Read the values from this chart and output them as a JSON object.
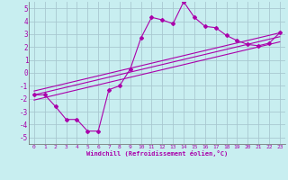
{
  "xlabel": "Windchill (Refroidissement éolien,°C)",
  "bg_color": "#c8eef0",
  "grid_color": "#a8c8d0",
  "line_color": "#aa00aa",
  "xlim": [
    -0.5,
    23.5
  ],
  "ylim": [
    -5.5,
    5.5
  ],
  "xticks": [
    0,
    1,
    2,
    3,
    4,
    5,
    6,
    7,
    8,
    9,
    10,
    11,
    12,
    13,
    14,
    15,
    16,
    17,
    18,
    19,
    20,
    21,
    22,
    23
  ],
  "yticks": [
    -5,
    -4,
    -3,
    -2,
    -1,
    0,
    1,
    2,
    3,
    4,
    5
  ],
  "scatter_x": [
    0,
    1,
    2,
    3,
    4,
    5,
    6,
    7,
    8,
    9,
    10,
    11,
    12,
    13,
    14,
    15,
    16,
    17,
    18,
    19,
    20,
    21,
    22,
    23
  ],
  "scatter_y": [
    -1.7,
    -1.7,
    -2.6,
    -3.6,
    -3.6,
    -4.5,
    -4.5,
    -1.3,
    -1.0,
    0.3,
    2.7,
    4.3,
    4.1,
    3.8,
    5.5,
    4.3,
    3.6,
    3.5,
    2.9,
    2.5,
    2.2,
    2.1,
    2.3,
    3.1
  ],
  "line1_x": [
    0,
    23
  ],
  "line1_y": [
    -2.1,
    2.4
  ],
  "line2_x": [
    0,
    23
  ],
  "line2_y": [
    -1.7,
    2.8
  ],
  "line3_x": [
    0,
    23
  ],
  "line3_y": [
    -1.4,
    3.1
  ]
}
